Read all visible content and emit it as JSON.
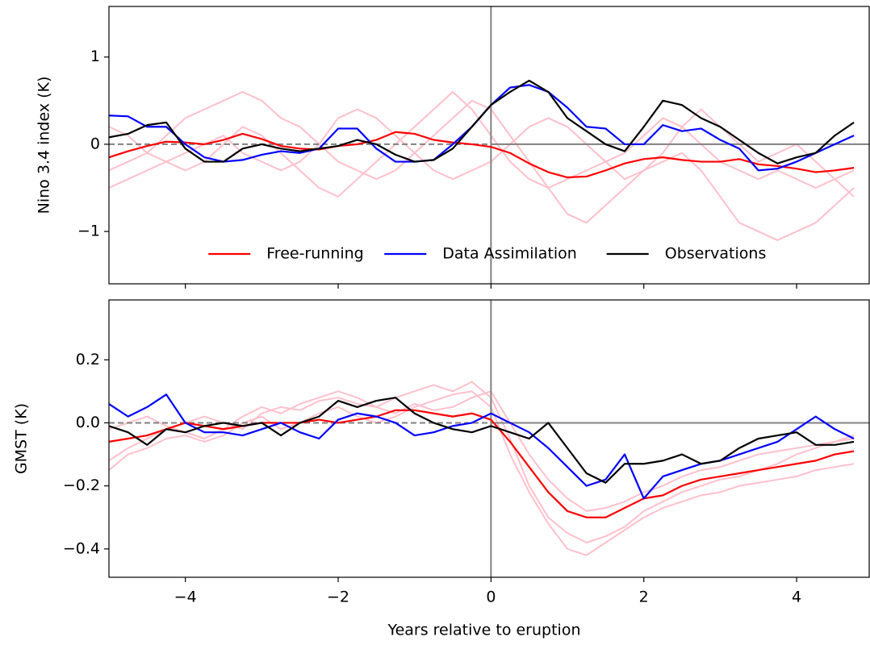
{
  "chart_data": [
    {
      "type": "line",
      "ylabel": "Nino 3.4 index (K)",
      "x": [
        -5,
        -4.75,
        -4.5,
        -4.25,
        -4,
        -3.75,
        -3.5,
        -3.25,
        -3,
        -2.75,
        -2.5,
        -2.25,
        -2,
        -1.75,
        -1.5,
        -1.25,
        -1,
        -0.75,
        -0.5,
        -0.25,
        0,
        0.25,
        0.5,
        0.75,
        1,
        1.25,
        1.5,
        1.75,
        2,
        2.25,
        2.5,
        2.75,
        3,
        3.25,
        3.5,
        3.75,
        4,
        4.25,
        4.5,
        4.75
      ],
      "series": [
        {
          "color": "#ffc0cb",
          "values": [
            -0.3,
            -0.2,
            -0.1,
            0.1,
            0.3,
            0.4,
            0.5,
            0.6,
            0.5,
            0.3,
            0.2,
            0.0,
            -0.2,
            -0.3,
            -0.4,
            -0.3,
            -0.1,
            0.1,
            0.3,
            0.5,
            0.4,
            0.1,
            -0.2,
            -0.5,
            -0.8,
            -0.9,
            -0.7,
            -0.5,
            -0.3,
            -0.2,
            -0.1,
            -0.3,
            -0.6,
            -0.9,
            -1.0,
            -1.1,
            -1.0,
            -0.9,
            -0.7,
            -0.5
          ]
        },
        {
          "color": "#ffc0cb",
          "values": [
            0.2,
            0.1,
            -0.1,
            -0.2,
            -0.3,
            -0.2,
            0.0,
            0.2,
            0.1,
            -0.1,
            -0.3,
            -0.5,
            -0.6,
            -0.4,
            -0.2,
            0.0,
            0.2,
            0.4,
            0.6,
            0.4,
            0.1,
            -0.2,
            -0.4,
            -0.5,
            -0.4,
            -0.3,
            -0.2,
            -0.1,
            0.1,
            0.3,
            0.2,
            0.0,
            -0.2,
            -0.3,
            -0.4,
            -0.3,
            -0.4,
            -0.5,
            -0.4,
            -0.3
          ]
        },
        {
          "color": "#ffc0cb",
          "values": [
            -0.5,
            -0.4,
            -0.3,
            -0.2,
            -0.1,
            0.0,
            0.1,
            -0.1,
            -0.2,
            -0.3,
            -0.2,
            0.0,
            0.3,
            0.4,
            0.3,
            0.1,
            -0.1,
            -0.3,
            -0.4,
            -0.3,
            -0.2,
            0.0,
            0.2,
            0.3,
            0.2,
            0.0,
            -0.2,
            -0.4,
            -0.3,
            -0.1,
            0.2,
            0.4,
            0.2,
            0.0,
            -0.2,
            -0.1,
            0.0,
            -0.2,
            -0.4,
            -0.6
          ]
        },
        {
          "name": "Free-running",
          "color": "#ff0000",
          "values": [
            -0.15,
            -0.08,
            -0.02,
            0.03,
            0.02,
            0.0,
            0.05,
            0.12,
            0.06,
            -0.02,
            -0.05,
            -0.06,
            -0.02,
            0.0,
            0.05,
            0.14,
            0.12,
            0.05,
            0.02,
            0.0,
            -0.03,
            -0.1,
            -0.22,
            -0.32,
            -0.38,
            -0.37,
            -0.3,
            -0.22,
            -0.17,
            -0.15,
            -0.18,
            -0.2,
            -0.2,
            -0.17,
            -0.23,
            -0.25,
            -0.28,
            -0.32,
            -0.3,
            -0.27
          ]
        },
        {
          "name": "Data Assimilation",
          "color": "#0000ff",
          "values": [
            0.33,
            0.32,
            0.2,
            0.2,
            0.0,
            -0.15,
            -0.2,
            -0.18,
            -0.12,
            -0.08,
            -0.1,
            -0.05,
            0.18,
            0.18,
            -0.05,
            -0.2,
            -0.2,
            -0.18,
            0.0,
            0.2,
            0.45,
            0.65,
            0.68,
            0.6,
            0.42,
            0.2,
            0.18,
            0.0,
            0.0,
            0.22,
            0.15,
            0.18,
            0.05,
            -0.05,
            -0.3,
            -0.28,
            -0.2,
            -0.1,
            0.0,
            0.1
          ]
        },
        {
          "name": "Observations",
          "color": "#000000",
          "values": [
            0.08,
            0.12,
            0.22,
            0.25,
            -0.05,
            -0.2,
            -0.2,
            -0.05,
            0.0,
            -0.05,
            -0.08,
            -0.05,
            -0.02,
            0.05,
            0.0,
            -0.12,
            -0.2,
            -0.18,
            -0.05,
            0.2,
            0.45,
            0.6,
            0.73,
            0.6,
            0.3,
            0.15,
            0.0,
            -0.08,
            0.2,
            0.5,
            0.45,
            0.3,
            0.2,
            0.05,
            -0.1,
            -0.22,
            -0.15,
            -0.1,
            0.1,
            0.25
          ]
        }
      ],
      "xlim": [
        -5,
        4.95
      ],
      "ylim": [
        -1.6,
        1.58
      ],
      "yticks": [
        {
          "value": -1,
          "label": "−1"
        },
        0,
        1
      ],
      "reference_lines": {
        "x": 0,
        "y": 0
      },
      "legend": "lower center"
    },
    {
      "type": "line",
      "ylabel": "GMST (K)",
      "xlabel": "Years relative to eruption",
      "x": [
        -5,
        -4.75,
        -4.5,
        -4.25,
        -4,
        -3.75,
        -3.5,
        -3.25,
        -3,
        -2.75,
        -2.5,
        -2.25,
        -2,
        -1.75,
        -1.5,
        -1.25,
        -1,
        -0.75,
        -0.5,
        -0.25,
        0,
        0.25,
        0.5,
        0.75,
        1,
        1.25,
        1.5,
        1.75,
        2,
        2.25,
        2.5,
        2.75,
        3,
        3.25,
        3.5,
        3.75,
        4,
        4.25,
        4.5,
        4.75
      ],
      "series": [
        {
          "color": "#ffc0cb",
          "values": [
            -0.12,
            -0.08,
            -0.05,
            -0.02,
            0.0,
            0.02,
            0.0,
            -0.02,
            0.03,
            0.05,
            0.04,
            0.07,
            0.08,
            0.06,
            0.05,
            0.08,
            0.1,
            0.12,
            0.1,
            0.13,
            0.08,
            -0.05,
            -0.2,
            -0.3,
            -0.35,
            -0.38,
            -0.36,
            -0.33,
            -0.28,
            -0.25,
            -0.22,
            -0.2,
            -0.18,
            -0.17,
            -0.15,
            -0.13,
            -0.1,
            -0.08,
            -0.06,
            -0.05
          ]
        },
        {
          "color": "#ffc0cb",
          "values": [
            -0.15,
            -0.1,
            -0.08,
            -0.05,
            -0.04,
            -0.06,
            -0.04,
            0.0,
            0.02,
            -0.02,
            0.0,
            0.03,
            0.05,
            0.02,
            0.0,
            0.02,
            0.05,
            0.07,
            0.09,
            0.1,
            0.05,
            -0.1,
            -0.22,
            -0.32,
            -0.4,
            -0.42,
            -0.38,
            -0.34,
            -0.3,
            -0.27,
            -0.25,
            -0.23,
            -0.22,
            -0.2,
            -0.19,
            -0.18,
            -0.17,
            -0.15,
            -0.14,
            -0.13
          ]
        },
        {
          "color": "#ffc0cb",
          "values": [
            -0.02,
            0.0,
            0.02,
            -0.01,
            -0.03,
            -0.05,
            -0.02,
            0.02,
            0.05,
            0.03,
            0.06,
            0.08,
            0.1,
            0.08,
            0.05,
            0.03,
            0.06,
            0.04,
            0.05,
            0.08,
            0.1,
            0.0,
            -0.1,
            -0.18,
            -0.24,
            -0.28,
            -0.27,
            -0.25,
            -0.22,
            -0.2,
            -0.17,
            -0.15,
            -0.14,
            -0.12,
            -0.1,
            -0.09,
            -0.08,
            -0.07,
            -0.06,
            -0.04
          ]
        },
        {
          "color": "#ff0000",
          "values": [
            -0.06,
            -0.05,
            -0.04,
            -0.02,
            0.0,
            -0.01,
            -0.02,
            -0.01,
            0.0,
            0.0,
            0.0,
            0.01,
            0.0,
            0.01,
            0.02,
            0.04,
            0.04,
            0.03,
            0.02,
            0.03,
            0.01,
            -0.06,
            -0.14,
            -0.22,
            -0.28,
            -0.3,
            -0.3,
            -0.27,
            -0.24,
            -0.23,
            -0.2,
            -0.18,
            -0.17,
            -0.16,
            -0.15,
            -0.14,
            -0.13,
            -0.12,
            -0.1,
            -0.09
          ]
        },
        {
          "color": "#0000ff",
          "values": [
            0.06,
            0.02,
            0.05,
            0.09,
            0.0,
            -0.03,
            -0.03,
            -0.04,
            -0.02,
            0.0,
            -0.03,
            -0.05,
            0.01,
            0.03,
            0.02,
            0.0,
            -0.04,
            -0.03,
            -0.01,
            0.0,
            0.03,
            0.0,
            -0.03,
            -0.08,
            -0.14,
            -0.2,
            -0.18,
            -0.1,
            -0.24,
            -0.17,
            -0.15,
            -0.13,
            -0.12,
            -0.1,
            -0.08,
            -0.06,
            -0.02,
            0.02,
            -0.02,
            -0.05
          ]
        },
        {
          "color": "#000000",
          "values": [
            -0.01,
            -0.03,
            -0.07,
            -0.02,
            -0.03,
            -0.01,
            0.0,
            -0.01,
            0.0,
            -0.04,
            0.0,
            0.02,
            0.07,
            0.05,
            0.07,
            0.08,
            0.03,
            0.0,
            -0.02,
            -0.03,
            -0.01,
            -0.03,
            -0.05,
            0.0,
            -0.08,
            -0.16,
            -0.19,
            -0.13,
            -0.13,
            -0.12,
            -0.1,
            -0.13,
            -0.12,
            -0.08,
            -0.05,
            -0.04,
            -0.03,
            -0.07,
            -0.07,
            -0.06
          ]
        }
      ],
      "xlim": [
        -5,
        4.95
      ],
      "ylim": [
        -0.49,
        0.39
      ],
      "xticks": [
        {
          "value": -4,
          "label": "−4"
        },
        {
          "value": -2,
          "label": "−2"
        },
        0,
        2,
        4
      ],
      "yticks": [
        {
          "value": -0.4,
          "label": "−0.4"
        },
        {
          "value": -0.2,
          "label": "−0.2"
        },
        {
          "value": 0,
          "label": "0.0"
        },
        {
          "value": 0.2,
          "label": "0.2"
        }
      ],
      "reference_lines": {
        "x": 0,
        "y": 0
      }
    }
  ]
}
